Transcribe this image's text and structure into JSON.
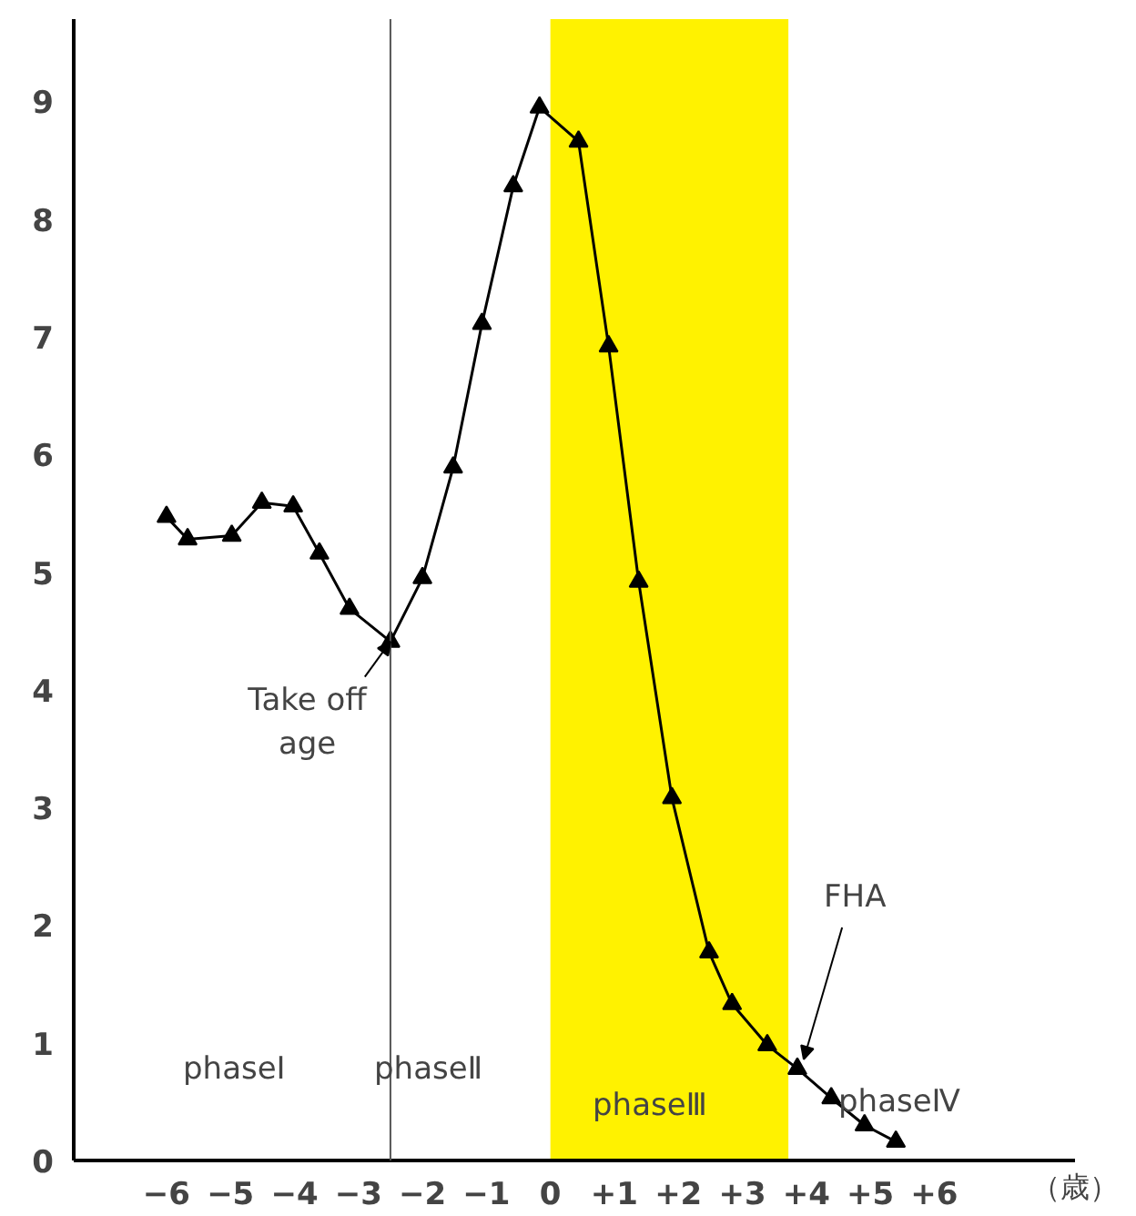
{
  "chart_data": {
    "type": "line",
    "xlabel": "（歳）",
    "x": [
      -6,
      -5.67,
      -4.98,
      -4.51,
      -4.02,
      -3.61,
      -3.14,
      -2.5,
      -2.0,
      -1.52,
      -1.07,
      -0.58,
      -0.17,
      0.44,
      0.91,
      1.38,
      1.9,
      2.48,
      2.84,
      3.39,
      3.86,
      4.39,
      4.91,
      5.4
    ],
    "series": [
      {
        "color": "#000000",
        "values": [
          5.47,
          5.28,
          5.31,
          5.59,
          5.56,
          5.16,
          4.69,
          4.41,
          4.95,
          5.89,
          7.11,
          8.28,
          8.95,
          8.66,
          6.92,
          4.92,
          3.08,
          1.77,
          1.33,
          0.98,
          0.78,
          0.53,
          0.3,
          0.16
        ]
      }
    ],
    "marker": "triangle",
    "line_style": "solid",
    "grid": false,
    "xlim": [
      -7.45,
      8.2
    ],
    "ylim": [
      0,
      9.7
    ],
    "xticks": [
      {
        "value": -6,
        "label": "−6"
      },
      {
        "value": -5,
        "label": "−5"
      },
      {
        "value": -4,
        "label": "−4"
      },
      {
        "value": -3,
        "label": "−3"
      },
      {
        "value": -2,
        "label": "−2"
      },
      {
        "value": -1,
        "label": "−1"
      },
      0,
      {
        "value": 1,
        "label": "+1"
      },
      {
        "value": 2,
        "label": "+2"
      },
      {
        "value": 3,
        "label": "+3"
      },
      {
        "value": 4,
        "label": "+4"
      },
      {
        "value": 5,
        "label": "+5"
      },
      {
        "value": 6,
        "label": "+6"
      }
    ],
    "yticks": [
      0,
      1,
      2,
      3,
      4,
      5,
      6,
      7,
      8,
      9
    ],
    "ref_lines": [
      {
        "axis": "x",
        "value": -2.5,
        "color": "#555555"
      }
    ],
    "bands": [
      {
        "axis": "x",
        "from": 0,
        "to": 3.72,
        "color": "#fff200"
      }
    ],
    "annotations": [
      {
        "text": "Take off\nage",
        "x": -2.5,
        "y": 4.41
      },
      {
        "text": "FHA",
        "x": 3.86,
        "y": 0.78
      },
      "phaseⅠ",
      "phaseⅡ",
      "phaseⅢ",
      "phaseⅣ"
    ]
  }
}
